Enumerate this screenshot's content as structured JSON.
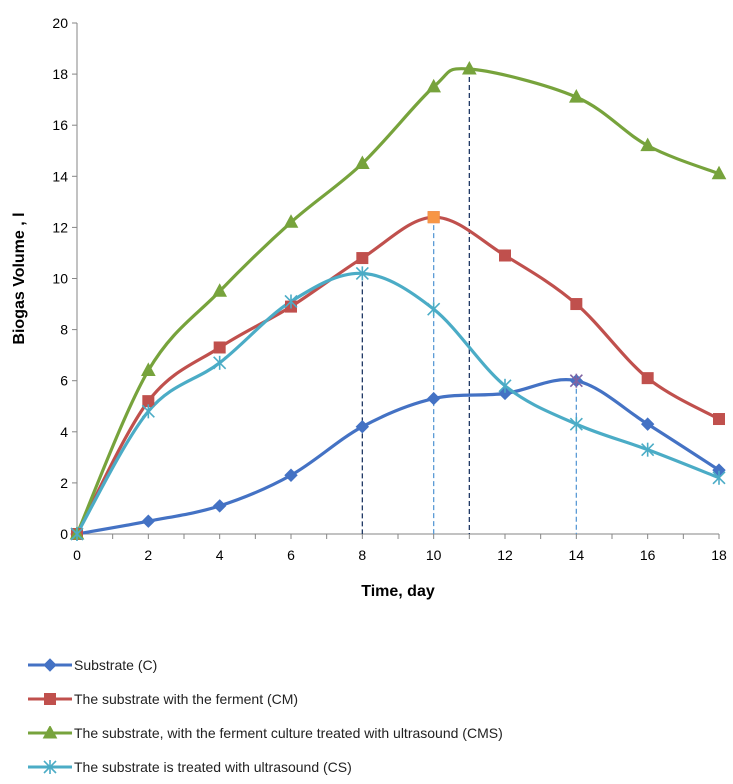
{
  "chart_data": {
    "type": "line",
    "xlabel": "Time, day",
    "ylabel": "Biogas Volume , l",
    "xlim": [
      0,
      18
    ],
    "ylim": [
      0,
      20
    ],
    "x_ticks": [
      0,
      2,
      4,
      6,
      8,
      10,
      12,
      14,
      16,
      18
    ],
    "y_ticks": [
      0,
      2,
      4,
      6,
      8,
      10,
      12,
      14,
      16,
      18,
      20
    ],
    "grid": false,
    "legend_position": "bottom",
    "series": [
      {
        "name": "Substrate (C)",
        "color": "#4472C4",
        "marker": "diamond",
        "x": [
          0,
          2,
          4,
          6,
          8,
          10,
          12,
          14,
          16,
          18
        ],
        "y": [
          0,
          0.5,
          1.1,
          2.3,
          4.2,
          5.3,
          5.5,
          6.0,
          4.3,
          2.5
        ]
      },
      {
        "name": "The substrate with the ferment (CM)",
        "color": "#C0504D",
        "marker": "square",
        "x": [
          0,
          2,
          4,
          6,
          8,
          10,
          12,
          14,
          16,
          18
        ],
        "y": [
          0,
          5.2,
          7.3,
          8.9,
          10.8,
          12.4,
          10.9,
          9.0,
          6.1,
          4.5
        ]
      },
      {
        "name": "The substrate, with the ferment culture treated with ultrasound (CMS)",
        "color": "#77A33C",
        "marker": "triangle",
        "x": [
          0,
          2,
          4,
          6,
          8,
          10,
          11,
          14,
          16,
          18
        ],
        "y": [
          0,
          6.4,
          9.5,
          12.2,
          14.5,
          17.5,
          18.2,
          17.1,
          15.2,
          14.1
        ]
      },
      {
        "name": "The substrate is treated with ultrasound (CS)",
        "color": "#4BACC6",
        "marker": "asterisk",
        "x": [
          0,
          2,
          4,
          6,
          8,
          10,
          12,
          14,
          16,
          18
        ],
        "y": [
          0,
          4.8,
          6.7,
          9.1,
          10.2,
          8.8,
          5.8,
          4.3,
          3.3,
          2.2
        ]
      }
    ],
    "highlight_markers": [
      {
        "x": 10,
        "y": 12.4,
        "color": "#F79646",
        "marker": "square"
      },
      {
        "x": 14,
        "y": 6.0,
        "color": "#8064A2",
        "marker": "asterisk"
      }
    ],
    "drop_lines": [
      {
        "x": 8,
        "y": 10.2,
        "color": "#1F3864"
      },
      {
        "x": 10,
        "y": 12.4,
        "color": "#5B9BD5"
      },
      {
        "x": 11,
        "y": 18.2,
        "color": "#1F3864"
      },
      {
        "x": 14,
        "y": 6.0,
        "color": "#5B9BD5"
      }
    ]
  }
}
